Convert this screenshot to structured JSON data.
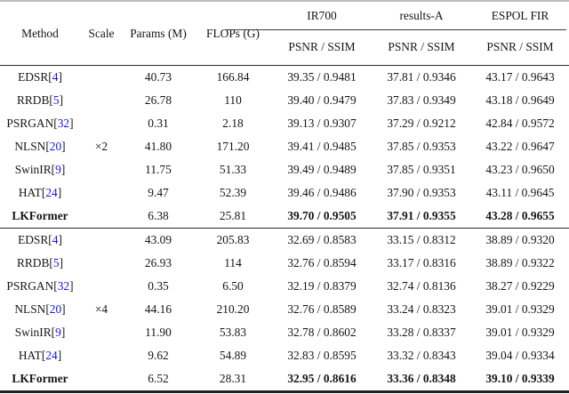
{
  "table": {
    "headers": {
      "method": "Method",
      "scale": "Scale",
      "params": "Params (M)",
      "flops": "FLOPs (G)",
      "groups": [
        {
          "label": "IR700",
          "sub": "PSNR / SSIM"
        },
        {
          "label": "results-A",
          "sub": "PSNR / SSIM"
        },
        {
          "label": "ESPOL FIR",
          "sub": "PSNR / SSIM"
        }
      ]
    },
    "cite_brackets": [
      "[",
      "]"
    ],
    "blocks": [
      {
        "scale": "×2",
        "rows": [
          {
            "method": "EDSR",
            "cite": "4",
            "params": "40.73",
            "flops": "166.84",
            "ir700": "39.35 / 0.9481",
            "resultsA": "37.81 / 0.9346",
            "espol": "43.17 / 0.9643",
            "bold": false
          },
          {
            "method": "RRDB",
            "cite": "5",
            "params": "26.78",
            "flops": "110",
            "ir700": "39.40 / 0.9479",
            "resultsA": "37.83 / 0.9349",
            "espol": "43.18 / 0.9649",
            "bold": false
          },
          {
            "method": "PSRGAN",
            "cite": "32",
            "params": "0.31",
            "flops": "2.18",
            "ir700": "39.13 / 0.9307",
            "resultsA": "37.29 / 0.9212",
            "espol": "42.84 / 0.9572",
            "bold": false
          },
          {
            "method": "NLSN",
            "cite": "20",
            "params": "41.80",
            "flops": "171.20",
            "ir700": "39.41 / 0.9485",
            "resultsA": "37.85 / 0.9353",
            "espol": "43.22 / 0.9647",
            "bold": false
          },
          {
            "method": "SwinIR",
            "cite": "9",
            "params": "11.75",
            "flops": "51.33",
            "ir700": "39.49 / 0.9489",
            "resultsA": "37.85 / 0.9351",
            "espol": "43.23 / 0.9650",
            "bold": false
          },
          {
            "method": "HAT",
            "cite": "24",
            "params": "9.47",
            "flops": "52.39",
            "ir700": "39.46 / 0.9486",
            "resultsA": "37.90 / 0.9353",
            "espol": "43.11 / 0.9645",
            "bold": false
          },
          {
            "method": "LKFormer",
            "cite": null,
            "params": "6.38",
            "flops": "25.81",
            "ir700": "39.70 / 0.9505",
            "resultsA": "37.91 / 0.9355",
            "espol": "43.28 / 0.9655",
            "bold": true
          }
        ]
      },
      {
        "scale": "×4",
        "rows": [
          {
            "method": "EDSR",
            "cite": "4",
            "params": "43.09",
            "flops": "205.83",
            "ir700": "32.69 / 0.8583",
            "resultsA": "33.15 / 0.8312",
            "espol": "38.89 / 0.9320",
            "bold": false
          },
          {
            "method": "RRDB",
            "cite": "5",
            "params": "26.93",
            "flops": "114",
            "ir700": "32.76 / 0.8594",
            "resultsA": "33.17 / 0.8316",
            "espol": "38.89 / 0.9322",
            "bold": false
          },
          {
            "method": "PSRGAN",
            "cite": "32",
            "params": "0.35",
            "flops": "6.50",
            "ir700": "32.19 / 0.8379",
            "resultsA": "32.74 / 0.8136",
            "espol": "38.27 / 0.9229",
            "bold": false
          },
          {
            "method": "NLSN",
            "cite": "20",
            "params": "44.16",
            "flops": "210.20",
            "ir700": "32.76 / 0.8589",
            "resultsA": "33.24 / 0.8323",
            "espol": "39.01 / 0.9329",
            "bold": false
          },
          {
            "method": "SwinIR",
            "cite": "9",
            "params": "11.90",
            "flops": "53.83",
            "ir700": "32.78 / 0.8602",
            "resultsA": "33.28 / 0.8337",
            "espol": "39.01 / 0.9329",
            "bold": false
          },
          {
            "method": "HAT",
            "cite": "24",
            "params": "9.62",
            "flops": "54.89",
            "ir700": "32.83 / 0.8595",
            "resultsA": "33.32 / 0.8343",
            "espol": "39.04 / 0.9334",
            "bold": false
          },
          {
            "method": "LKFormer",
            "cite": null,
            "params": "6.52",
            "flops": "28.31",
            "ir700": "32.95 / 0.8616",
            "resultsA": "33.36 / 0.8348",
            "espol": "39.10 / 0.9339",
            "bold": true
          }
        ]
      }
    ]
  },
  "colors": {
    "citation": "#1414e6",
    "text": "#161616",
    "rule_dark": "#2a2a2a",
    "rule_top_light": "#bdbdbd",
    "background": "#ffffff"
  }
}
